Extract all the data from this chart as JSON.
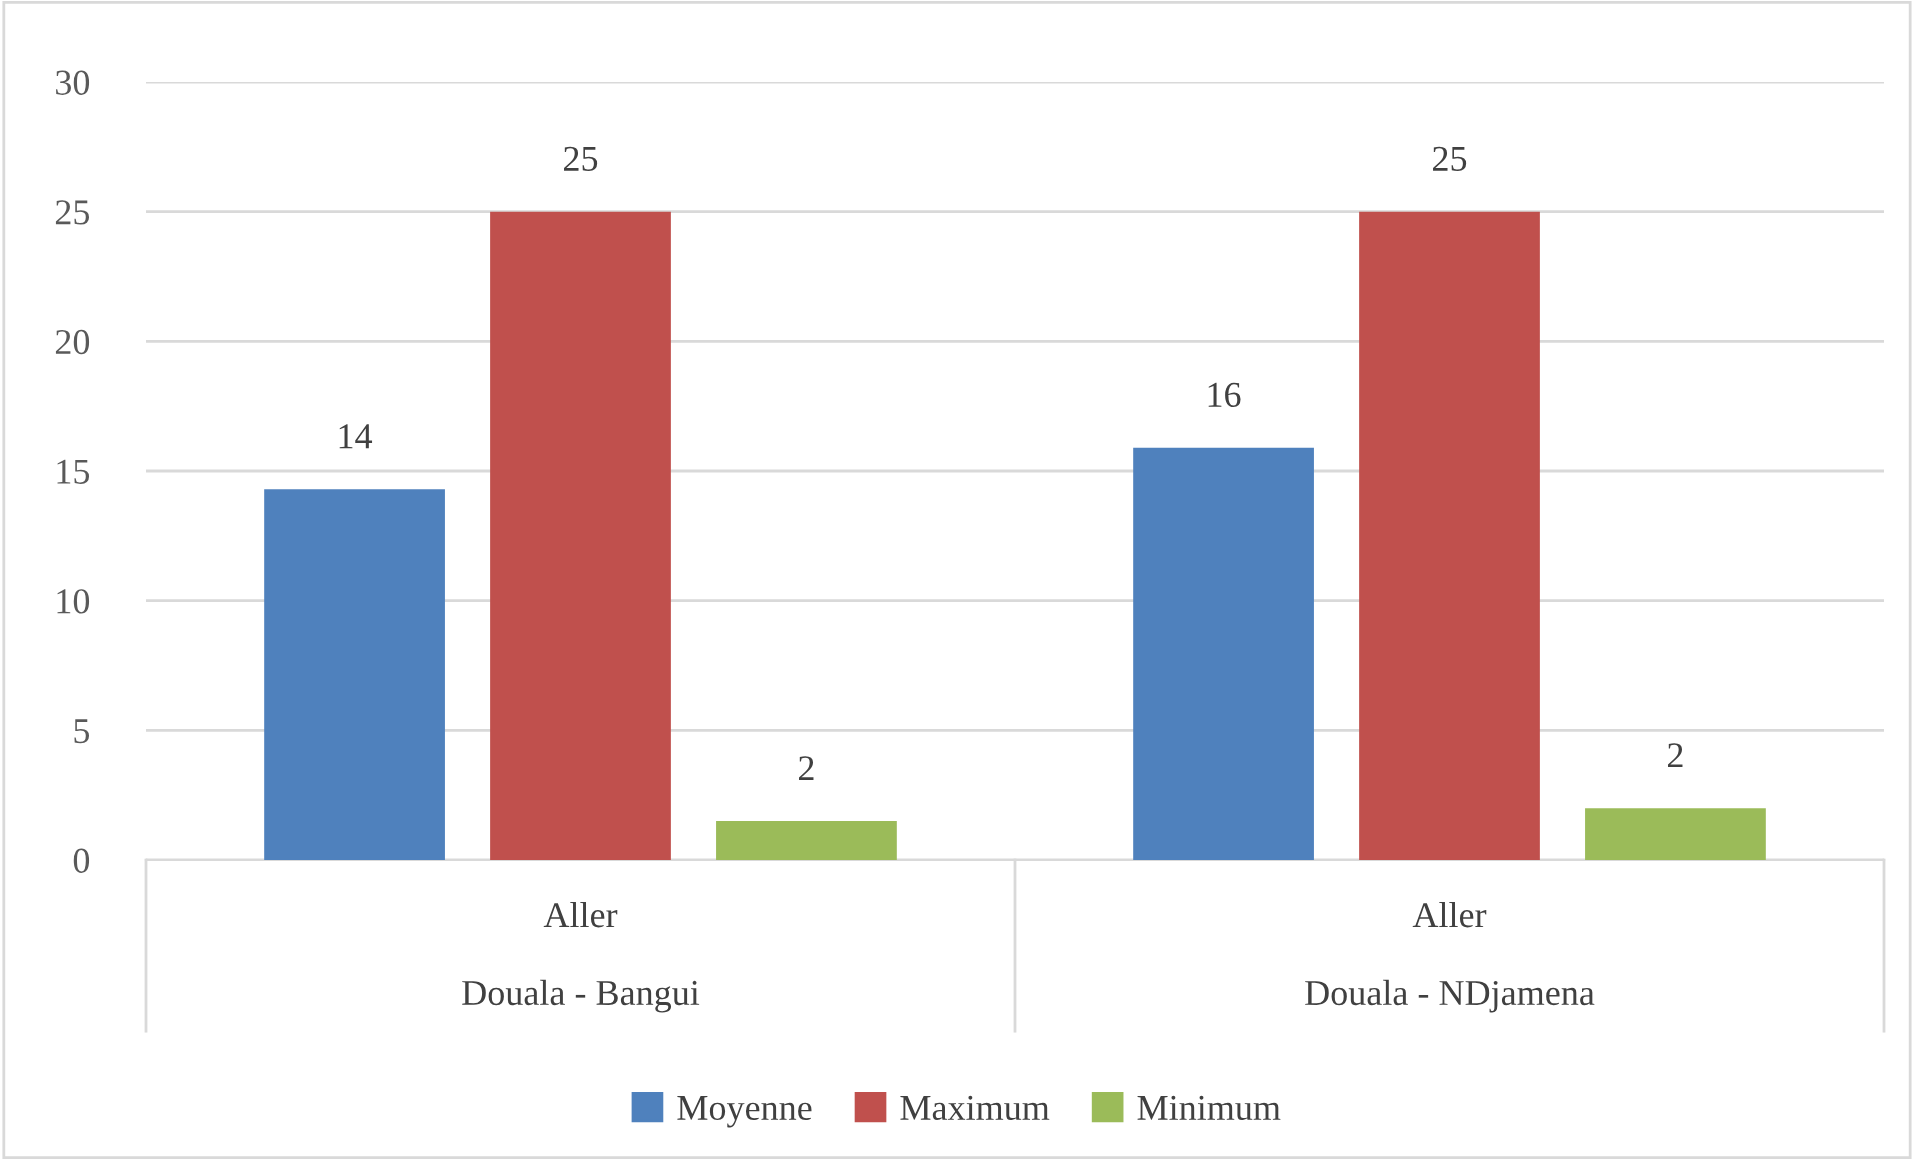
{
  "chart_data": {
    "type": "bar",
    "categories": [
      "Aller\nDouala - Bangui",
      "Aller\nDouala - NDjamena"
    ],
    "series": [
      {
        "name": "Moyenne",
        "color": "#4f81bd",
        "values": [
          14.3,
          15.9
        ],
        "value_labels": [
          "14",
          "16"
        ]
      },
      {
        "name": "Maximum",
        "color": "#c0504d",
        "values": [
          25,
          25
        ],
        "value_labels": [
          "25",
          "25"
        ]
      },
      {
        "name": "Minimum",
        "color": "#9bbb59",
        "values": [
          1.5,
          2
        ],
        "value_labels": [
          "2",
          "2"
        ]
      }
    ],
    "ylim": [
      0,
      30
    ],
    "yticks": [
      0,
      5,
      10,
      15,
      20,
      25,
      30
    ],
    "grid": "y",
    "legend": "bottom"
  }
}
